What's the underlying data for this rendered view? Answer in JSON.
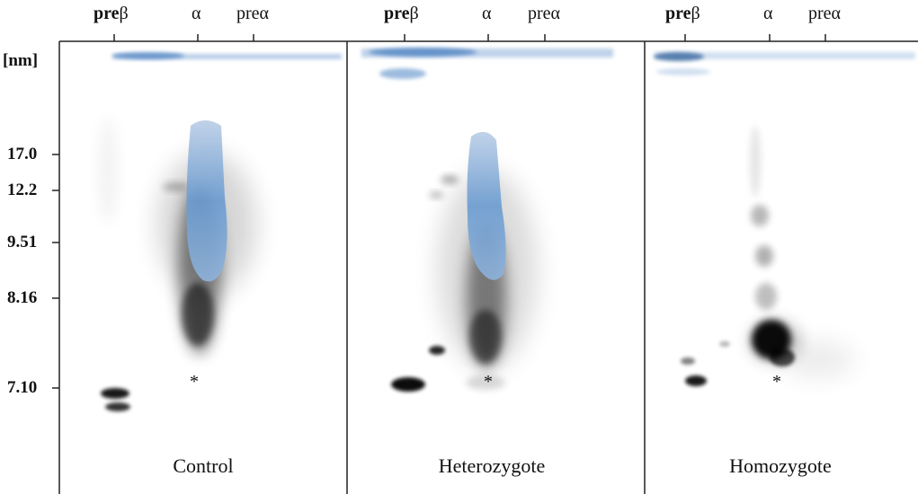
{
  "unit_label": "[nm]",
  "size_markers": [
    "17.0",
    "12.2",
    "9.51",
    "8.16",
    "7.10"
  ],
  "panels": [
    {
      "caption": "Control",
      "migration_labels": {
        "pre_bold": "pre",
        "pre_sym": "β",
        "alpha": "α",
        "prealpha": "preα"
      },
      "marker": "*"
    },
    {
      "caption": "Heterozygote",
      "migration_labels": {
        "pre_bold": "pre",
        "pre_sym": "β",
        "alpha": "α",
        "prealpha": "preα"
      },
      "marker": "*"
    },
    {
      "caption": "Homozygote",
      "migration_labels": {
        "pre_bold": "pre",
        "pre_sym": "β",
        "alpha": "α",
        "prealpha": "preα"
      },
      "marker": "*"
    }
  ],
  "colors": {
    "blot_blue": "#5b8fc9",
    "blot_dark": "#111111"
  }
}
